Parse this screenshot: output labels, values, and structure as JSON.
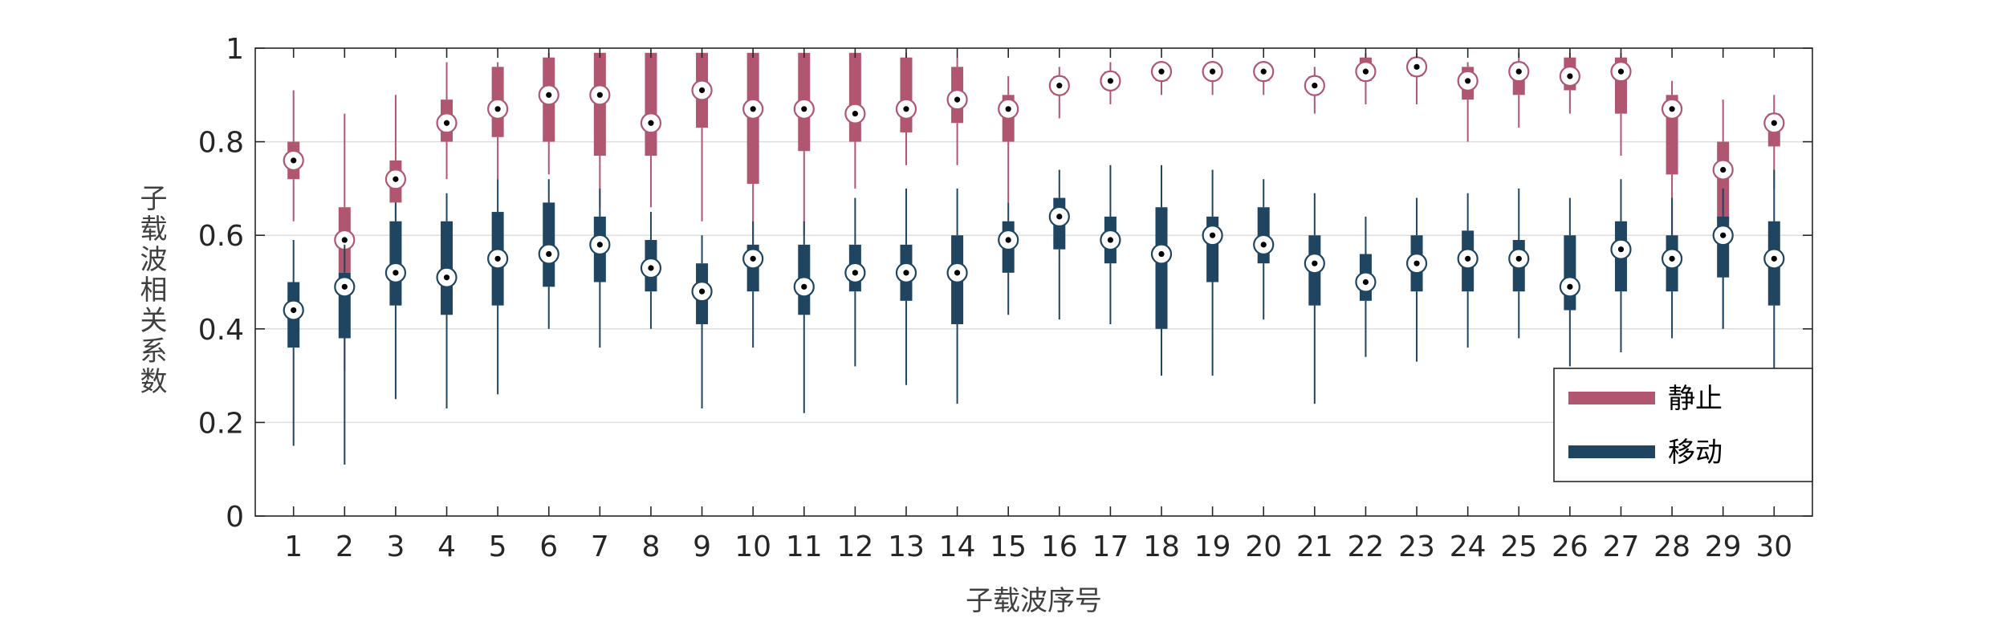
{
  "chart_data": {
    "type": "box",
    "categories": [
      "1",
      "2",
      "3",
      "4",
      "5",
      "6",
      "7",
      "8",
      "9",
      "10",
      "11",
      "12",
      "13",
      "14",
      "15",
      "16",
      "17",
      "18",
      "19",
      "20",
      "21",
      "22",
      "23",
      "24",
      "25",
      "26",
      "27",
      "28",
      "29",
      "30"
    ],
    "xlabel": "子载波序号",
    "ylabel": "子载波相关系数",
    "ylim": [
      0,
      1
    ],
    "yticks": [
      "0",
      "0.2",
      "0.4",
      "0.6",
      "0.8",
      "1"
    ],
    "ytick_values": [
      0,
      0.2,
      0.4,
      0.6,
      0.8,
      1
    ],
    "grid": true,
    "legend": {
      "position": "bottom-right",
      "entries": [
        "静止",
        "移动"
      ]
    },
    "series": [
      {
        "name": "静止",
        "color": "#b05670",
        "boxes": [
          {
            "min": 0.63,
            "q1": 0.72,
            "median": 0.76,
            "q3": 0.8,
            "max": 0.91
          },
          {
            "min": 0.31,
            "q1": 0.52,
            "median": 0.59,
            "q3": 0.66,
            "max": 0.86
          },
          {
            "min": 0.6,
            "q1": 0.67,
            "median": 0.72,
            "q3": 0.76,
            "max": 0.9
          },
          {
            "min": 0.72,
            "q1": 0.8,
            "median": 0.84,
            "q3": 0.89,
            "max": 0.97
          },
          {
            "min": 0.72,
            "q1": 0.81,
            "median": 0.87,
            "q3": 0.96,
            "max": 0.97
          },
          {
            "min": 0.73,
            "q1": 0.8,
            "median": 0.9,
            "q3": 0.98,
            "max": 0.99
          },
          {
            "min": 0.66,
            "q1": 0.77,
            "median": 0.9,
            "q3": 0.99,
            "max": 0.99
          },
          {
            "min": 0.66,
            "q1": 0.77,
            "median": 0.84,
            "q3": 0.99,
            "max": 0.99
          },
          {
            "min": 0.63,
            "q1": 0.83,
            "median": 0.91,
            "q3": 0.99,
            "max": 0.99
          },
          {
            "min": 0.5,
            "q1": 0.71,
            "median": 0.87,
            "q3": 0.99,
            "max": 0.99
          },
          {
            "min": 0.6,
            "q1": 0.78,
            "median": 0.87,
            "q3": 0.99,
            "max": 0.99
          },
          {
            "min": 0.7,
            "q1": 0.8,
            "median": 0.86,
            "q3": 0.99,
            "max": 0.99
          },
          {
            "min": 0.75,
            "q1": 0.82,
            "median": 0.87,
            "q3": 0.98,
            "max": 0.99
          },
          {
            "min": 0.75,
            "q1": 0.84,
            "median": 0.89,
            "q3": 0.96,
            "max": 0.98
          },
          {
            "min": 0.67,
            "q1": 0.8,
            "median": 0.87,
            "q3": 0.9,
            "max": 0.94
          },
          {
            "min": 0.85,
            "q1": 0.9,
            "median": 0.92,
            "q3": 0.94,
            "max": 0.96
          },
          {
            "min": 0.88,
            "q1": 0.92,
            "median": 0.93,
            "q3": 0.95,
            "max": 0.97
          },
          {
            "min": 0.9,
            "q1": 0.93,
            "median": 0.95,
            "q3": 0.96,
            "max": 0.97
          },
          {
            "min": 0.9,
            "q1": 0.94,
            "median": 0.95,
            "q3": 0.96,
            "max": 0.97
          },
          {
            "min": 0.9,
            "q1": 0.93,
            "median": 0.95,
            "q3": 0.96,
            "max": 0.97
          },
          {
            "min": 0.86,
            "q1": 0.91,
            "median": 0.92,
            "q3": 0.94,
            "max": 0.96
          },
          {
            "min": 0.88,
            "q1": 0.93,
            "median": 0.95,
            "q3": 0.98,
            "max": 0.99
          },
          {
            "min": 0.88,
            "q1": 0.94,
            "median": 0.96,
            "q3": 0.98,
            "max": 0.99
          },
          {
            "min": 0.8,
            "q1": 0.89,
            "median": 0.93,
            "q3": 0.96,
            "max": 0.97
          },
          {
            "min": 0.83,
            "q1": 0.9,
            "median": 0.95,
            "q3": 0.97,
            "max": 0.99
          },
          {
            "min": 0.86,
            "q1": 0.91,
            "median": 0.94,
            "q3": 0.98,
            "max": 0.99
          },
          {
            "min": 0.77,
            "q1": 0.86,
            "median": 0.95,
            "q3": 0.98,
            "max": 0.99
          },
          {
            "min": 0.59,
            "q1": 0.73,
            "median": 0.87,
            "q3": 0.9,
            "max": 0.93
          },
          {
            "min": 0.4,
            "q1": 0.63,
            "median": 0.74,
            "q3": 0.8,
            "max": 0.89
          },
          {
            "min": 0.7,
            "q1": 0.79,
            "median": 0.84,
            "q3": 0.86,
            "max": 0.9
          }
        ]
      },
      {
        "name": "移动",
        "color": "#1f4560",
        "boxes": [
          {
            "min": 0.15,
            "q1": 0.36,
            "median": 0.44,
            "q3": 0.5,
            "max": 0.59
          },
          {
            "min": 0.11,
            "q1": 0.38,
            "median": 0.49,
            "q3": 0.52,
            "max": 0.58
          },
          {
            "min": 0.25,
            "q1": 0.45,
            "median": 0.52,
            "q3": 0.63,
            "max": 0.67
          },
          {
            "min": 0.23,
            "q1": 0.43,
            "median": 0.51,
            "q3": 0.63,
            "max": 0.69
          },
          {
            "min": 0.26,
            "q1": 0.45,
            "median": 0.55,
            "q3": 0.65,
            "max": 0.72
          },
          {
            "min": 0.4,
            "q1": 0.49,
            "median": 0.56,
            "q3": 0.67,
            "max": 0.72
          },
          {
            "min": 0.36,
            "q1": 0.5,
            "median": 0.58,
            "q3": 0.64,
            "max": 0.7
          },
          {
            "min": 0.4,
            "q1": 0.48,
            "median": 0.53,
            "q3": 0.59,
            "max": 0.65
          },
          {
            "min": 0.23,
            "q1": 0.41,
            "median": 0.48,
            "q3": 0.54,
            "max": 0.6
          },
          {
            "min": 0.36,
            "q1": 0.48,
            "median": 0.55,
            "q3": 0.58,
            "max": 0.63
          },
          {
            "min": 0.22,
            "q1": 0.43,
            "median": 0.49,
            "q3": 0.58,
            "max": 0.63
          },
          {
            "min": 0.32,
            "q1": 0.48,
            "median": 0.52,
            "q3": 0.58,
            "max": 0.68
          },
          {
            "min": 0.28,
            "q1": 0.46,
            "median": 0.52,
            "q3": 0.58,
            "max": 0.7
          },
          {
            "min": 0.24,
            "q1": 0.41,
            "median": 0.52,
            "q3": 0.6,
            "max": 0.7
          },
          {
            "min": 0.43,
            "q1": 0.52,
            "median": 0.59,
            "q3": 0.63,
            "max": 0.67
          },
          {
            "min": 0.42,
            "q1": 0.57,
            "median": 0.64,
            "q3": 0.68,
            "max": 0.74
          },
          {
            "min": 0.41,
            "q1": 0.54,
            "median": 0.59,
            "q3": 0.64,
            "max": 0.75
          },
          {
            "min": 0.3,
            "q1": 0.4,
            "median": 0.56,
            "q3": 0.66,
            "max": 0.75
          },
          {
            "min": 0.3,
            "q1": 0.5,
            "median": 0.6,
            "q3": 0.64,
            "max": 0.74
          },
          {
            "min": 0.42,
            "q1": 0.54,
            "median": 0.58,
            "q3": 0.66,
            "max": 0.72
          },
          {
            "min": 0.24,
            "q1": 0.45,
            "median": 0.54,
            "q3": 0.6,
            "max": 0.69
          },
          {
            "min": 0.34,
            "q1": 0.46,
            "median": 0.5,
            "q3": 0.56,
            "max": 0.64
          },
          {
            "min": 0.33,
            "q1": 0.48,
            "median": 0.54,
            "q3": 0.6,
            "max": 0.68
          },
          {
            "min": 0.36,
            "q1": 0.48,
            "median": 0.55,
            "q3": 0.61,
            "max": 0.69
          },
          {
            "min": 0.38,
            "q1": 0.48,
            "median": 0.55,
            "q3": 0.59,
            "max": 0.7
          },
          {
            "min": 0.32,
            "q1": 0.44,
            "median": 0.49,
            "q3": 0.6,
            "max": 0.68
          },
          {
            "min": 0.35,
            "q1": 0.48,
            "median": 0.57,
            "q3": 0.63,
            "max": 0.72
          },
          {
            "min": 0.38,
            "q1": 0.48,
            "median": 0.55,
            "q3": 0.6,
            "max": 0.68
          },
          {
            "min": 0.4,
            "q1": 0.51,
            "median": 0.6,
            "q3": 0.64,
            "max": 0.7
          },
          {
            "min": 0.25,
            "q1": 0.45,
            "median": 0.55,
            "q3": 0.63,
            "max": 0.74
          }
        ]
      }
    ]
  }
}
